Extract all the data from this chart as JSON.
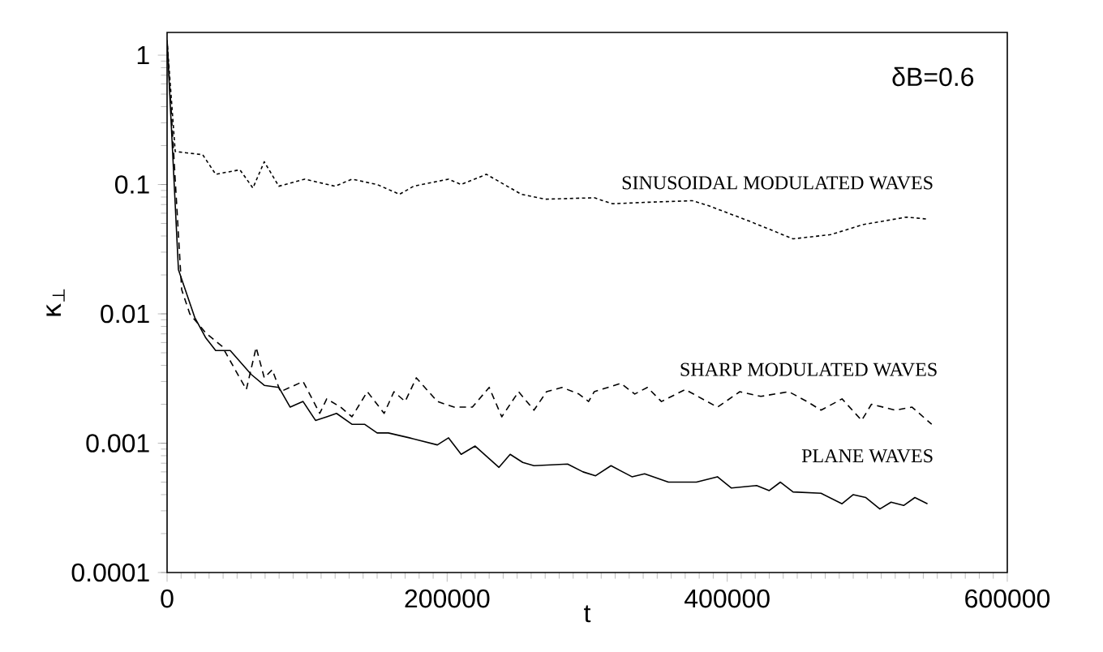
{
  "chart_data": {
    "type": "line",
    "xlabel": "t",
    "ylabel": "κ$_{⊥}$",
    "log": "y",
    "xlim": [
      0,
      600000
    ],
    "ylim": [
      0.0001,
      1.5
    ],
    "xticks": [
      0,
      200000,
      400000,
      600000
    ],
    "yticks": [
      0.0001,
      0.001,
      0.01,
      0.1,
      1
    ],
    "series": [
      {
        "name": "SINUSOIDAL MODULATED WAVES",
        "color": "#000000",
        "line_style": "dotted",
        "x": [
          0,
          5800,
          25400,
          34700,
          52000,
          61300,
          69400,
          79800,
          98300,
          120000,
          132000,
          150000,
          166000,
          176000,
          201000,
          210000,
          228000,
          253000,
          270000,
          305000,
          318000,
          344000,
          375000,
          386000,
          416000,
          447000,
          474000,
          497000,
          528000,
          543000
        ],
        "values": [
          1.3,
          0.18,
          0.17,
          0.12,
          0.13,
          0.094,
          0.15,
          0.097,
          0.11,
          0.097,
          0.11,
          0.1,
          0.084,
          0.097,
          0.11,
          0.1,
          0.12,
          0.084,
          0.077,
          0.079,
          0.071,
          0.073,
          0.075,
          0.069,
          0.052,
          0.038,
          0.041,
          0.049,
          0.056,
          0.054
        ]
      },
      {
        "name": "SHARP MODULATED WAVES",
        "color": "#000000",
        "line_style": "dashed",
        "x": [
          0,
          10400,
          16200,
          27700,
          39300,
          48600,
          56600,
          63600,
          69400,
          75100,
          80900,
          97100,
          109000,
          114000,
          124000,
          132000,
          143000,
          155000,
          162000,
          170000,
          178000,
          193000,
          205000,
          218000,
          230000,
          239000,
          251000,
          262000,
          271000,
          282000,
          294000,
          301000,
          305000,
          324000,
          334000,
          343000,
          353000,
          370000,
          393000,
          409000,
          424000,
          444000,
          457000,
          467000,
          482000,
          496000,
          503000,
          520000,
          532000,
          546000
        ],
        "values": [
          1.3,
          0.0154,
          0.01,
          0.0071,
          0.0056,
          0.0037,
          0.0026,
          0.0055,
          0.0032,
          0.0037,
          0.0025,
          0.003,
          0.0017,
          0.0022,
          0.0019,
          0.0016,
          0.0025,
          0.0017,
          0.0025,
          0.0021,
          0.0032,
          0.0021,
          0.0019,
          0.0019,
          0.0027,
          0.0016,
          0.0025,
          0.0018,
          0.0025,
          0.0027,
          0.0024,
          0.0021,
          0.0025,
          0.0029,
          0.0024,
          0.0027,
          0.0021,
          0.0026,
          0.0019,
          0.0025,
          0.0023,
          0.0025,
          0.0021,
          0.0018,
          0.0022,
          0.0015,
          0.002,
          0.0018,
          0.0019,
          0.0014
        ]
      },
      {
        "name": "PLANE WAVES",
        "color": "#000000",
        "line_style": "solid",
        "x": [
          0,
          8100,
          19700,
          27700,
          34700,
          45100,
          60100,
          69400,
          79800,
          87900,
          97100,
          106000,
          114000,
          121000,
          132000,
          141000,
          150000,
          158000,
          173000,
          193000,
          201000,
          210000,
          220000,
          237000,
          245000,
          254000,
          262000,
          286000,
          297000,
          306000,
          317000,
          332000,
          341000,
          358000,
          378000,
          393000,
          403000,
          421000,
          430000,
          438000,
          447000,
          467000,
          482000,
          490000,
          499000,
          509000,
          517000,
          526000,
          534000,
          543000
        ],
        "values": [
          1.3,
          0.022,
          0.0094,
          0.0065,
          0.0052,
          0.0052,
          0.0034,
          0.0028,
          0.0027,
          0.0019,
          0.0021,
          0.0015,
          0.0016,
          0.0017,
          0.0014,
          0.0014,
          0.0012,
          0.0012,
          0.0011,
          0.00097,
          0.0011,
          0.00082,
          0.00095,
          0.00065,
          0.00082,
          0.00071,
          0.00067,
          0.00069,
          0.0006,
          0.00056,
          0.00067,
          0.00055,
          0.00058,
          0.0005,
          0.0005,
          0.00055,
          0.00045,
          0.00047,
          0.00043,
          0.0005,
          0.00042,
          0.00041,
          0.00034,
          0.0004,
          0.00038,
          0.00031,
          0.00035,
          0.00033,
          0.00038,
          0.00034
        ]
      }
    ],
    "annotations": [
      "δB=0.6"
    ]
  }
}
